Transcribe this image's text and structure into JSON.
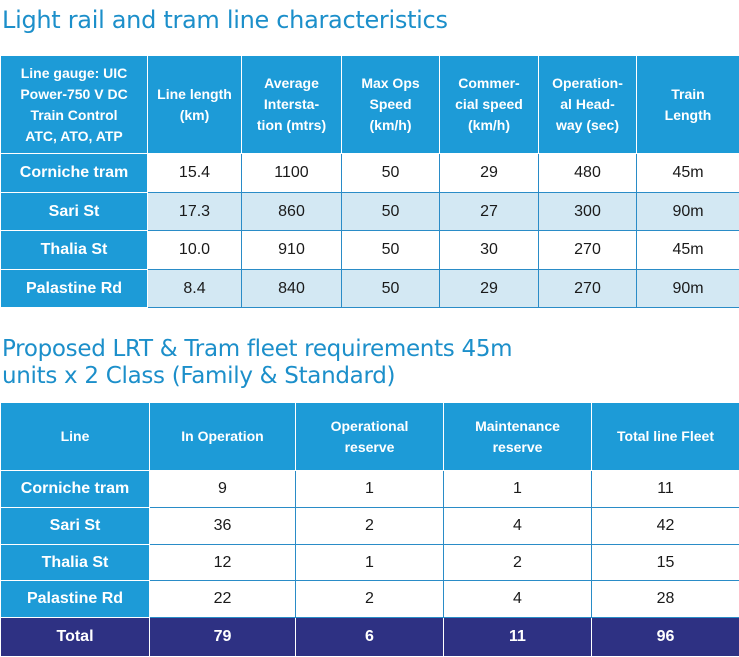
{
  "section1": {
    "title": "Light rail and tram line characteristics",
    "table": {
      "corner_header": [
        "Line gauge: UIC",
        "Power-750 V DC",
        "Train Control",
        "ATC, ATO, ATP"
      ],
      "columns": [
        [
          "Line length",
          "(km)"
        ],
        [
          "Average",
          "Intersta-",
          "tion (mtrs)"
        ],
        [
          "Max Ops",
          "Speed",
          "(km/h)"
        ],
        [
          "Commer-",
          "cial speed",
          "(km/h)"
        ],
        [
          "Operation-",
          "al Head-",
          "way (sec)"
        ],
        [
          "Train",
          "Length"
        ]
      ],
      "rows": [
        {
          "line": "Corniche tram",
          "values": [
            "15.4",
            "1100",
            "50",
            "29",
            "480",
            "45m"
          ]
        },
        {
          "line": "Sari St",
          "values": [
            "17.3",
            "860",
            "50",
            "27",
            "300",
            "90m"
          ]
        },
        {
          "line": "Thalia St",
          "values": [
            "10.0",
            "910",
            "50",
            "30",
            "270",
            "45m"
          ]
        },
        {
          "line": "Palastine Rd",
          "values": [
            "8.4",
            "840",
            "50",
            "29",
            "270",
            "90m"
          ]
        }
      ]
    }
  },
  "section2": {
    "title_lines": [
      "Proposed LRT & Tram fleet requirements 45m",
      "units x 2 Class (Family & Standard)"
    ],
    "table": {
      "columns": [
        [
          "Line"
        ],
        [
          "In Operation"
        ],
        [
          "Operational",
          "reserve"
        ],
        [
          "Maintenance",
          "reserve"
        ],
        [
          "Total line Fleet"
        ]
      ],
      "rows": [
        {
          "line": "Corniche tram",
          "values": [
            "9",
            "1",
            "1",
            "11"
          ]
        },
        {
          "line": "Sari St",
          "values": [
            "36",
            "2",
            "4",
            "42"
          ]
        },
        {
          "line": "Thalia St",
          "values": [
            "12",
            "1",
            "2",
            "15"
          ]
        },
        {
          "line": "Palastine Rd",
          "values": [
            "22",
            "2",
            "4",
            "28"
          ]
        }
      ],
      "total": {
        "label": "Total",
        "values": [
          "79",
          "6",
          "11",
          "96"
        ]
      }
    }
  }
}
